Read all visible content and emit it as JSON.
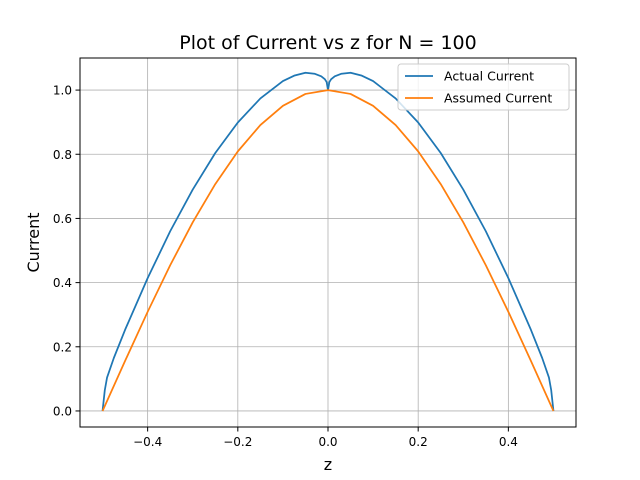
{
  "chart_data": {
    "type": "line",
    "title": "Plot of Current vs z for N = 100",
    "xlabel": "z",
    "ylabel": "Current",
    "xlim": [
      -0.55,
      0.55
    ],
    "ylim": [
      -0.05,
      1.1
    ],
    "xticks": [
      -0.4,
      -0.2,
      0.0,
      0.2,
      0.4
    ],
    "xtick_labels": [
      "−0.4",
      "−0.2",
      "0.0",
      "0.2",
      "0.4"
    ],
    "yticks": [
      0.0,
      0.2,
      0.4,
      0.6,
      0.8,
      1.0
    ],
    "ytick_labels": [
      "0.0",
      "0.2",
      "0.4",
      "0.6",
      "0.8",
      "1.0"
    ],
    "grid": true,
    "legend_position": "upper-right",
    "series": [
      {
        "name": "Actual Current",
        "color": "#1f77b4",
        "x": [
          -0.5,
          -0.495,
          -0.49,
          -0.475,
          -0.45,
          -0.4,
          -0.35,
          -0.3,
          -0.25,
          -0.2,
          -0.15,
          -0.1,
          -0.075,
          -0.05,
          -0.03,
          -0.015,
          -0.007,
          -0.003,
          0.0,
          0.003,
          0.007,
          0.015,
          0.03,
          0.05,
          0.075,
          0.1,
          0.15,
          0.2,
          0.25,
          0.3,
          0.35,
          0.4,
          0.45,
          0.475,
          0.49,
          0.495,
          0.5
        ],
        "y": [
          0.0,
          0.065,
          0.104,
          0.165,
          0.253,
          0.414,
          0.56,
          0.69,
          0.804,
          0.899,
          0.974,
          1.028,
          1.045,
          1.054,
          1.051,
          1.043,
          1.034,
          1.025,
          1.0,
          1.025,
          1.034,
          1.043,
          1.051,
          1.054,
          1.045,
          1.028,
          0.974,
          0.899,
          0.804,
          0.69,
          0.56,
          0.414,
          0.253,
          0.165,
          0.104,
          0.065,
          0.0
        ]
      },
      {
        "name": "Assumed Current",
        "color": "#ff7f0e",
        "x": [
          -0.5,
          -0.45,
          -0.4,
          -0.35,
          -0.3,
          -0.25,
          -0.2,
          -0.15,
          -0.1,
          -0.05,
          0.0,
          0.05,
          0.1,
          0.15,
          0.2,
          0.25,
          0.3,
          0.35,
          0.4,
          0.45,
          0.5
        ],
        "y": [
          0.0,
          0.156,
          0.309,
          0.454,
          0.588,
          0.707,
          0.809,
          0.891,
          0.951,
          0.988,
          1.0,
          0.988,
          0.951,
          0.891,
          0.809,
          0.707,
          0.588,
          0.454,
          0.309,
          0.156,
          0.0
        ]
      }
    ]
  }
}
